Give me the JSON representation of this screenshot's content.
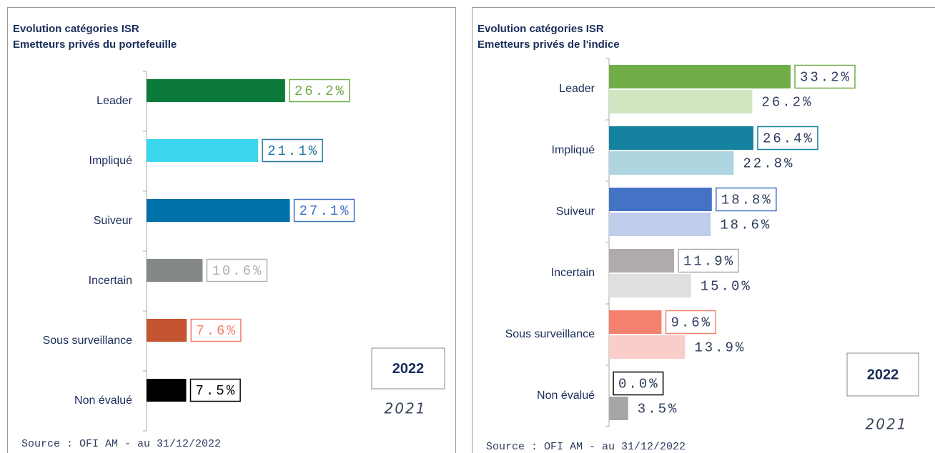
{
  "chart_data": [
    {
      "type": "bar",
      "orientation": "horizontal",
      "title": "Evolution catégories ISR",
      "subtitle": "Emetteurs privés du portefeuille",
      "categories": [
        "Leader",
        "Impliqué",
        "Suiveur",
        "Incertain",
        "Sous surveillance",
        "Non évalué"
      ],
      "series": [
        {
          "name": "2022",
          "values": [
            26.2,
            21.1,
            27.1,
            10.6,
            7.6,
            7.5
          ],
          "value_labels": [
            "26.2%",
            "21.1%",
            "27.1%",
            "10.6%",
            "7.6%",
            "7.5%"
          ],
          "colors": [
            "#0b7a3b",
            "#3dd6ef",
            "#0070a8",
            "#848889",
            "#c55430",
            "#000000"
          ],
          "label_colors": [
            "#70ad47",
            "#1f77a0",
            "#4472c4",
            "#b0b0b0",
            "#f08070",
            "#000000"
          ]
        },
        {
          "name": "2021",
          "values": [
            null,
            null,
            null,
            null,
            null,
            null
          ]
        }
      ],
      "source": "Source : OFI AM - au 31/12/2022"
    },
    {
      "type": "bar",
      "orientation": "horizontal",
      "title": "Evolution catégories ISR",
      "subtitle": "Emetteurs privés de l'indice",
      "categories": [
        "Leader",
        "Impliqué",
        "Suiveur",
        "Incertain",
        "Sous surveillance",
        "Non évalué"
      ],
      "series": [
        {
          "name": "2022",
          "values": [
            33.2,
            26.4,
            18.8,
            11.9,
            9.6,
            0.0
          ],
          "value_labels": [
            "33.2%",
            "26.4%",
            "18.8%",
            "11.9%",
            "9.6%",
            "0.0%"
          ],
          "colors": [
            "#70ad47",
            "#1582a0",
            "#4472c4",
            "#afabab",
            "#f4806e",
            "#000000"
          ],
          "label_colors": [
            "#70ad47",
            "#1582a0",
            "#4472c4",
            "#afabab",
            "#f4806e",
            "#000000"
          ]
        },
        {
          "name": "2021",
          "values": [
            26.2,
            22.8,
            18.6,
            15.0,
            13.9,
            3.5
          ],
          "value_labels": [
            "26.2%",
            "22.8%",
            "18.6%",
            "15.0%",
            "13.9%",
            "3.5%"
          ],
          "colors": [
            "#d0e5c0",
            "#aed5e0",
            "#bfcdea",
            "#e0e0e0",
            "#f9ceca",
            "#a6a6a6"
          ]
        }
      ],
      "label_text_color": "#2e3b5e",
      "source": "Source : OFI AM - au 31/12/2022"
    }
  ]
}
